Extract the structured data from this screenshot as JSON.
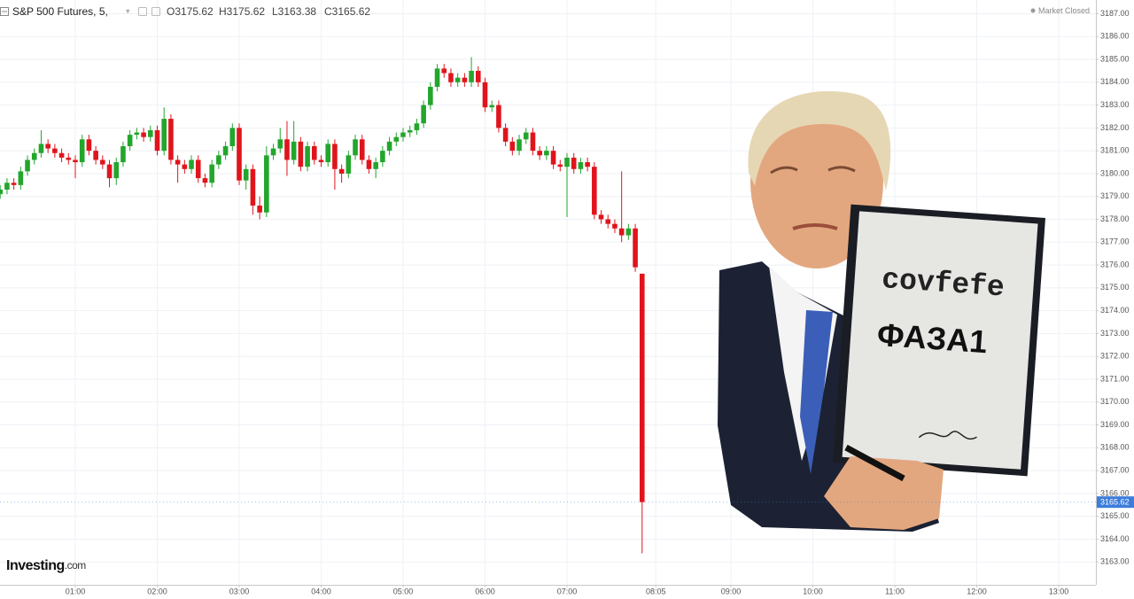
{
  "chart_data": {
    "type": "candlestick",
    "title": "S&P 500 Futures, 5,",
    "header_values": [
      {
        "value": 3175.62,
        "label": "O3175.62"
      },
      {
        "value": 3175.62,
        "label": "H3175.62"
      },
      {
        "value": 3163.38,
        "label": "L3163.38"
      },
      {
        "value": 3165.62,
        "label": "C3165.62"
      }
    ],
    "status": "Market Closed",
    "logo": [
      "Investing",
      ".com"
    ],
    "last_price": 3165.62,
    "up_color": "#22a62c",
    "down_color": "#e0141c",
    "last_price_color": "#3d7ddb",
    "grid": true,
    "x": [
      "00:05",
      "00:10",
      "00:15",
      "00:20",
      "00:25",
      "00:30",
      "00:35",
      "00:40",
      "00:45",
      "00:50",
      "00:55",
      "01:00",
      "01:05",
      "01:10",
      "01:15",
      "01:20",
      "01:25",
      "01:30",
      "01:35",
      "01:40",
      "01:45",
      "01:50",
      "01:55",
      "02:00",
      "02:05",
      "02:10",
      "02:15",
      "02:20",
      "02:25",
      "02:30",
      "02:35",
      "02:40",
      "02:45",
      "02:50",
      "02:55",
      "03:00",
      "03:05",
      "03:10",
      "03:15",
      "03:20",
      "03:25",
      "03:30",
      "03:35",
      "03:40",
      "03:45",
      "03:50",
      "03:55",
      "04:00",
      "04:05",
      "04:10",
      "04:15",
      "04:20",
      "04:25",
      "04:30",
      "04:35",
      "04:40",
      "04:45",
      "04:50",
      "04:55",
      "05:00",
      "05:05",
      "05:10",
      "05:15",
      "05:20",
      "05:25",
      "05:30",
      "05:35",
      "05:40",
      "05:45",
      "05:50",
      "05:55",
      "06:00",
      "06:05",
      "06:10",
      "06:15",
      "06:20",
      "06:25",
      "06:30",
      "06:35",
      "06:40",
      "06:45",
      "06:50",
      "06:55",
      "07:00",
      "07:05",
      "07:10",
      "07:15",
      "07:20",
      "07:25",
      "07:30",
      "07:35",
      "07:40",
      "07:45",
      "07:50",
      "07:55"
    ],
    "open": [
      3179.1,
      3179.3,
      3179.6,
      3179.5,
      3180.1,
      3180.6,
      3180.9,
      3181.3,
      3181.1,
      3180.9,
      3180.7,
      3180.6,
      3180.5,
      3181.5,
      3181.0,
      3180.6,
      3180.4,
      3179.8,
      3180.5,
      3181.2,
      3181.7,
      3181.8,
      3181.6,
      3181.9,
      3181.0,
      3182.4,
      3180.6,
      3180.4,
      3180.2,
      3180.6,
      3179.8,
      3179.6,
      3180.4,
      3180.8,
      3181.2,
      3182.0,
      3179.7,
      3180.2,
      3178.6,
      3178.3,
      3180.8,
      3181.1,
      3181.5,
      3180.6,
      3181.4,
      3180.3,
      3181.2,
      3180.6,
      3180.5,
      3181.3,
      3180.2,
      3180.0,
      3180.8,
      3181.5,
      3180.6,
      3180.2,
      3180.5,
      3181.0,
      3181.4,
      3181.6,
      3181.8,
      3181.9,
      3182.2,
      3183.0,
      3183.8,
      3184.6,
      3184.4,
      3184.0,
      3184.2,
      3184.0,
      3184.5,
      3184.0,
      3182.9,
      3183.0,
      3182.0,
      3181.4,
      3181.0,
      3181.5,
      3181.8,
      3181.0,
      3180.8,
      3181.0,
      3180.4,
      3180.3,
      3180.7,
      3180.2,
      3180.5,
      3180.3,
      3178.2,
      3178.0,
      3177.8,
      3177.6,
      3177.3,
      3177.6,
      3175.62
    ],
    "high": [
      3179.5,
      3179.8,
      3179.8,
      3180.3,
      3180.8,
      3181.1,
      3181.9,
      3181.5,
      3181.3,
      3181.1,
      3180.9,
      3180.8,
      3181.7,
      3181.7,
      3181.2,
      3180.8,
      3180.6,
      3180.7,
      3181.4,
      3181.9,
      3182.0,
      3182.0,
      3182.1,
      3182.1,
      3182.9,
      3182.6,
      3180.8,
      3180.6,
      3180.8,
      3180.8,
      3180.0,
      3180.6,
      3181.0,
      3181.4,
      3182.2,
      3182.2,
      3180.4,
      3180.4,
      3179.0,
      3181.2,
      3181.3,
      3182.0,
      3182.3,
      3182.3,
      3181.6,
      3181.4,
      3181.4,
      3180.8,
      3181.5,
      3181.5,
      3180.4,
      3181.0,
      3181.7,
      3181.7,
      3180.8,
      3180.7,
      3181.2,
      3181.6,
      3181.8,
      3182.0,
      3182.1,
      3182.4,
      3183.2,
      3184.0,
      3184.8,
      3184.8,
      3184.6,
      3184.4,
      3184.4,
      3185.1,
      3184.7,
      3184.2,
      3183.2,
      3183.2,
      3182.2,
      3181.6,
      3181.7,
      3182.0,
      3182.0,
      3181.2,
      3181.2,
      3181.2,
      3180.6,
      3180.9,
      3180.9,
      3180.7,
      3180.7,
      3180.5,
      3178.4,
      3178.2,
      3178.0,
      3180.1,
      3177.8,
      3177.8,
      3175.62
    ],
    "low": [
      3178.9,
      3179.1,
      3179.3,
      3179.3,
      3179.9,
      3180.4,
      3180.7,
      3180.9,
      3180.7,
      3180.5,
      3180.4,
      3179.8,
      3180.3,
      3180.8,
      3180.4,
      3180.2,
      3179.4,
      3179.5,
      3180.3,
      3181.0,
      3181.5,
      3181.4,
      3181.4,
      3180.8,
      3180.8,
      3180.4,
      3179.6,
      3180.0,
      3180.0,
      3179.6,
      3179.4,
      3179.4,
      3180.2,
      3180.6,
      3181.0,
      3179.5,
      3179.3,
      3178.2,
      3178.0,
      3178.1,
      3180.6,
      3180.9,
      3179.9,
      3180.4,
      3180.1,
      3180.1,
      3180.4,
      3180.3,
      3180.3,
      3179.3,
      3179.6,
      3179.8,
      3180.6,
      3180.4,
      3180.0,
      3179.8,
      3180.3,
      3180.8,
      3181.2,
      3181.4,
      3181.6,
      3181.7,
      3182.0,
      3182.8,
      3183.6,
      3184.2,
      3183.8,
      3183.8,
      3183.8,
      3183.8,
      3183.8,
      3182.7,
      3182.7,
      3181.8,
      3181.2,
      3180.8,
      3180.8,
      3181.3,
      3180.8,
      3180.6,
      3180.6,
      3180.2,
      3180.1,
      3178.1,
      3180.0,
      3180.0,
      3180.1,
      3178.0,
      3177.8,
      3177.6,
      3177.4,
      3177.0,
      3177.1,
      3175.7,
      3163.38
    ],
    "close": [
      3179.3,
      3179.6,
      3179.5,
      3180.1,
      3180.6,
      3180.9,
      3181.3,
      3181.1,
      3180.9,
      3180.7,
      3180.6,
      3180.5,
      3181.5,
      3181.0,
      3180.6,
      3180.4,
      3179.8,
      3180.5,
      3181.2,
      3181.7,
      3181.8,
      3181.6,
      3181.9,
      3181.0,
      3182.4,
      3180.6,
      3180.4,
      3180.2,
      3180.6,
      3179.8,
      3179.6,
      3180.4,
      3180.8,
      3181.2,
      3182.0,
      3179.7,
      3180.2,
      3178.6,
      3178.3,
      3180.8,
      3181.1,
      3181.5,
      3180.6,
      3181.4,
      3180.3,
      3181.2,
      3180.6,
      3180.5,
      3181.3,
      3180.2,
      3180.0,
      3180.8,
      3181.5,
      3180.6,
      3180.2,
      3180.5,
      3181.0,
      3181.4,
      3181.6,
      3181.8,
      3181.9,
      3182.2,
      3183.0,
      3183.8,
      3184.6,
      3184.4,
      3184.0,
      3184.2,
      3184.0,
      3184.5,
      3184.0,
      3182.9,
      3183.0,
      3182.0,
      3181.4,
      3181.0,
      3181.5,
      3181.8,
      3181.0,
      3180.8,
      3181.0,
      3180.4,
      3180.3,
      3180.7,
      3180.2,
      3180.5,
      3180.3,
      3178.2,
      3178.0,
      3177.8,
      3177.6,
      3177.3,
      3177.6,
      3175.9,
      3165.62
    ],
    "ylim": [
      3162.0,
      3187.6
    ],
    "yticks": [
      {
        "value": 3163,
        "label": "3163.00"
      },
      {
        "value": 3164,
        "label": "3164.00"
      },
      {
        "value": 3165,
        "label": "3165.00"
      },
      {
        "value": 3166,
        "label": "3166.00"
      },
      {
        "value": 3167,
        "label": "3167.00"
      },
      {
        "value": 3168,
        "label": "3168.00"
      },
      {
        "value": 3169,
        "label": "3169.00"
      },
      {
        "value": 3170,
        "label": "3170.00"
      },
      {
        "value": 3171,
        "label": "3171.00"
      },
      {
        "value": 3172,
        "label": "3172.00"
      },
      {
        "value": 3173,
        "label": "3173.00"
      },
      {
        "value": 3174,
        "label": "3174.00"
      },
      {
        "value": 3175,
        "label": "3175.00"
      },
      {
        "value": 3176,
        "label": "3176.00"
      },
      {
        "value": 3177,
        "label": "3177.00"
      },
      {
        "value": 3178,
        "label": "3178.00"
      },
      {
        "value": 3179,
        "label": "3179.00"
      },
      {
        "value": 3180,
        "label": "3180.00"
      },
      {
        "value": 3181,
        "label": "3181.00"
      },
      {
        "value": 3182,
        "label": "3182.00"
      },
      {
        "value": 3183,
        "label": "3183.00"
      },
      {
        "value": 3184,
        "label": "3184.00"
      },
      {
        "value": 3185,
        "label": "3185.00"
      },
      {
        "value": 3186,
        "label": "3186.00"
      },
      {
        "value": 3187,
        "label": "3187.00"
      }
    ],
    "xticks": [
      "01:00",
      "02:00",
      "03:00",
      "04:00",
      "05:00",
      "06:00",
      "07:00",
      "08:05",
      "09:00",
      "10:00",
      "11:00",
      "12:00",
      "13:00"
    ]
  },
  "overlay": {
    "line1": "covfefe",
    "line2": "ФАЗА1"
  }
}
